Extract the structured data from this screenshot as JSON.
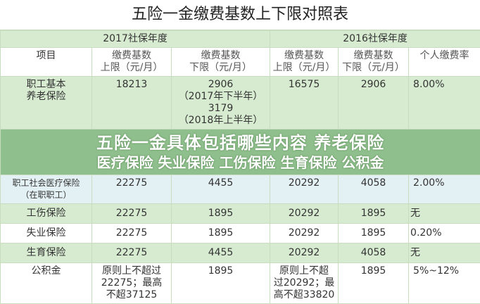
{
  "title": "五险一金缴费基数上下限对照表",
  "year_headers": [
    "2017社保年度",
    "2016社保年度"
  ],
  "columns": [
    "项目",
    "缴费基数\n上限（元/月）",
    "缴费基数\n下限（元/月）",
    "缴费基数\n上限（元/月）",
    "缴费基数\n下限（元/月）",
    "个人缴费率"
  ],
  "rows": [
    [
      "职工基本\n养老保险",
      "18213",
      "2906\n（2017年下半年）\n3179\n（2018年上半年）",
      "16575",
      "2906",
      "8.00%"
    ],
    [
      "职工社会医疗保险\n（在职职工）",
      "22275",
      "4455",
      "20292",
      "4058",
      "2.00%"
    ],
    [
      "工伤保险",
      "22275",
      "1895",
      "20292",
      "1895",
      "无"
    ],
    [
      "失业保险",
      "22275",
      "1895",
      "20292",
      "1895",
      "0.20%"
    ],
    [
      "生育保险",
      "22275",
      "4455",
      "20292",
      "4058",
      "无"
    ],
    [
      "公积金",
      "原则上不超过\n22275；最高\n不超37125",
      "1895",
      "原则上不超\n过20292；最\n高不超33820",
      "1895",
      "5%~12%"
    ]
  ],
  "overlay": {
    "line1": "五险一金具体包括哪些内容 养老保险",
    "line2": "医疗保险 失业保险 工伤保险 生育保险 公积金"
  },
  "colors": {
    "green_row": "#d7ebd1",
    "border": "#c8dcc0"
  }
}
